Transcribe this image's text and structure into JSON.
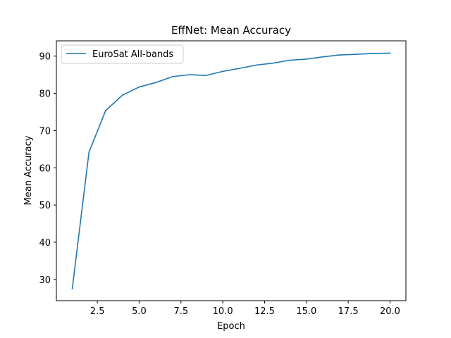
{
  "chart_data": {
    "type": "line",
    "title": "EffNet: Mean Accuracy",
    "xlabel": "Epoch",
    "ylabel": "Mean Accuracy",
    "xlim": [
      0.05,
      20.95
    ],
    "ylim": [
      24.3,
      94.1
    ],
    "x_ticks": [
      2.5,
      5.0,
      7.5,
      10.0,
      12.5,
      15.0,
      17.5,
      20.0
    ],
    "x_tick_labels": [
      "2.5",
      "5.0",
      "7.5",
      "10.0",
      "12.5",
      "15.0",
      "17.5",
      "20.0"
    ],
    "y_ticks": [
      30,
      40,
      50,
      60,
      70,
      80,
      90
    ],
    "y_tick_labels": [
      "30",
      "40",
      "50",
      "60",
      "70",
      "80",
      "90"
    ],
    "grid": false,
    "legend_position": "top-left",
    "series": [
      {
        "name": "EuroSat All-bands",
        "color": "#1f77b4",
        "x": [
          1,
          2,
          3,
          4,
          5,
          6,
          7,
          8,
          9,
          10,
          11,
          12,
          13,
          14,
          15,
          16,
          17,
          18,
          19,
          20
        ],
        "y": [
          27.5,
          64.2,
          75.4,
          79.5,
          81.7,
          82.9,
          84.5,
          85.0,
          84.8,
          85.9,
          86.7,
          87.6,
          88.1,
          88.9,
          89.2,
          89.8,
          90.3,
          90.5,
          90.7,
          90.8
        ]
      }
    ]
  }
}
